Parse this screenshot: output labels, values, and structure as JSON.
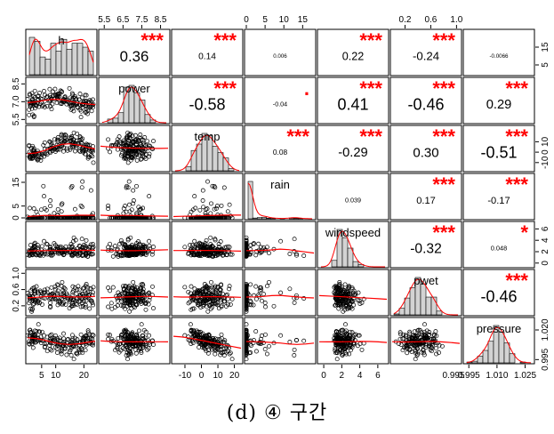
{
  "caption": "(d) ④ 구간",
  "chart_data": {
    "type": "scatter-matrix",
    "variables": [
      "h",
      "power",
      "temp",
      "rain",
      "windspeed",
      "pwet",
      "pressure"
    ],
    "ranges": [
      [
        0,
        24
      ],
      [
        5.3,
        8.9
      ],
      [
        -17,
        24
      ],
      [
        0,
        18
      ],
      [
        -0.5,
        7
      ],
      [
        0,
        1.05
      ],
      [
        0.993,
        1.029
      ]
    ],
    "correlations": [
      {
        "row": 0,
        "col": 1,
        "value": "0.36",
        "stars": "***"
      },
      {
        "row": 0,
        "col": 2,
        "value": "0.14",
        "stars": "***"
      },
      {
        "row": 0,
        "col": 3,
        "value": "0.006",
        "stars": ""
      },
      {
        "row": 0,
        "col": 4,
        "value": "0.22",
        "stars": "***"
      },
      {
        "row": 0,
        "col": 5,
        "value": "-0.24",
        "stars": "***"
      },
      {
        "row": 0,
        "col": 6,
        "value": "-0.0066",
        "stars": ""
      },
      {
        "row": 1,
        "col": 2,
        "value": "-0.58",
        "stars": "***"
      },
      {
        "row": 1,
        "col": 3,
        "value": "-0.04",
        "stars": "."
      },
      {
        "row": 1,
        "col": 4,
        "value": "0.41",
        "stars": "***"
      },
      {
        "row": 1,
        "col": 5,
        "value": "-0.46",
        "stars": "***"
      },
      {
        "row": 1,
        "col": 6,
        "value": "0.29",
        "stars": "***"
      },
      {
        "row": 2,
        "col": 3,
        "value": "0.08",
        "stars": "***"
      },
      {
        "row": 2,
        "col": 4,
        "value": "-0.29",
        "stars": "***"
      },
      {
        "row": 2,
        "col": 5,
        "value": "0.30",
        "stars": "***"
      },
      {
        "row": 2,
        "col": 6,
        "value": "-0.51",
        "stars": "***"
      },
      {
        "row": 3,
        "col": 4,
        "value": "0.039",
        "stars": ""
      },
      {
        "row": 3,
        "col": 5,
        "value": "0.17",
        "stars": "***"
      },
      {
        "row": 3,
        "col": 6,
        "value": "-0.17",
        "stars": "***"
      },
      {
        "row": 4,
        "col": 5,
        "value": "-0.32",
        "stars": "***"
      },
      {
        "row": 4,
        "col": 6,
        "value": "0.048",
        "stars": "*"
      },
      {
        "row": 5,
        "col": 6,
        "value": "-0.46",
        "stars": "***"
      }
    ],
    "top_axes": [
      {
        "col": 1,
        "ticks": [
          "5.5",
          "6.5",
          "7.5",
          "8.5"
        ],
        "values": [
          5.5,
          6.5,
          7.5,
          8.5
        ]
      },
      {
        "col": 3,
        "ticks": [
          "0",
          "5",
          "10",
          "15"
        ],
        "values": [
          0,
          5,
          10,
          15
        ]
      },
      {
        "col": 5,
        "ticks": [
          "0.2",
          "0.6",
          "1.0"
        ],
        "values": [
          0.2,
          0.6,
          1.0
        ]
      }
    ],
    "bottom_axes": [
      {
        "col": 0,
        "ticks": [
          "5",
          "10",
          "20"
        ],
        "values": [
          5,
          10,
          20
        ]
      },
      {
        "col": 2,
        "ticks": [
          "-10",
          "0",
          "10",
          "20"
        ],
        "values": [
          -10,
          0,
          10,
          20
        ]
      },
      {
        "col": 4,
        "ticks": [
          "0",
          "2",
          "4",
          "6"
        ],
        "values": [
          0,
          2,
          4,
          6
        ]
      },
      {
        "col": 6,
        "ticks": [
          "0.995",
          "1.010",
          "1.025"
        ],
        "values": [
          0.995,
          1.01,
          1.025
        ]
      }
    ],
    "left_axes": [
      {
        "row": 1,
        "ticks": [
          "5.5",
          "7.0",
          "8.5"
        ],
        "values": [
          5.5,
          7.0,
          8.5
        ]
      },
      {
        "row": 3,
        "ticks": [
          "0",
          "5",
          "15"
        ],
        "values": [
          0,
          5,
          15
        ]
      },
      {
        "row": 5,
        "ticks": [
          "0.2",
          "0.6",
          "1.0"
        ],
        "values": [
          0.2,
          0.6,
          1.0
        ]
      }
    ],
    "right_axes": [
      {
        "row": 0,
        "ticks": [
          "5",
          "15"
        ],
        "values": [
          5,
          15
        ]
      },
      {
        "row": 2,
        "ticks": [
          "-10",
          "0",
          "10"
        ],
        "values": [
          -10,
          0,
          10
        ]
      },
      {
        "row": 4,
        "ticks": [
          "0",
          "2",
          "4",
          "6"
        ],
        "values": [
          0,
          2,
          4,
          6
        ]
      },
      {
        "row": 6,
        "ticks": [
          "0.995",
          "1.020"
        ],
        "values": [
          0.995,
          1.02
        ]
      }
    ],
    "extra_bottom_label": {
      "col": 5,
      "tick": "0.995"
    },
    "star_color": "#ff0000",
    "smooth_color": "#ff0000",
    "hist_fill": "#d3d3d3"
  }
}
